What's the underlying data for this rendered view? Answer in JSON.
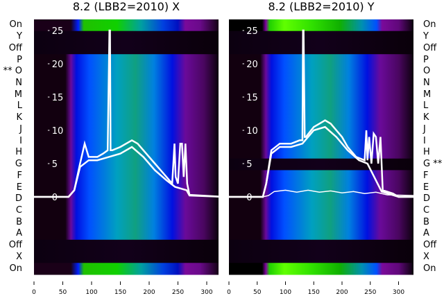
{
  "chart_data": [
    {
      "type": "heatmap",
      "title": "8.2 (LBB2=2010) X",
      "xlim": [
        0,
        320
      ],
      "ylim_overlay": [
        -1,
        27
      ],
      "x_ticks": [
        "0",
        "50",
        "100",
        "150",
        "200",
        "250",
        "300"
      ],
      "y_ticks": [
        "0",
        "5",
        "10",
        "15",
        "20",
        "25"
      ],
      "row_labels": [
        "On",
        "Y",
        "Off",
        "P",
        "** O",
        "N",
        "M",
        "L",
        "K",
        "J",
        "I",
        "H",
        "G",
        "F",
        "E",
        "D",
        "C",
        "B",
        "A",
        "Off",
        "X",
        "On"
      ],
      "row_kinds": [
        "green",
        "dark",
        "dark",
        "blue",
        "blue",
        "blue",
        "blue",
        "blue",
        "blue",
        "blue",
        "blue",
        "blue",
        "blue",
        "blue",
        "blue",
        "blue",
        "blue",
        "blue",
        "blue",
        "dark",
        "dark",
        "green"
      ],
      "lines": [
        {
          "name": "spectrum",
          "x": [
            0,
            60,
            70,
            80,
            88,
            95,
            100,
            110,
            120,
            128,
            131,
            132,
            133,
            136,
            150,
            160,
            170,
            180,
            190,
            200,
            210,
            220,
            230,
            240,
            244,
            246,
            250,
            254,
            257,
            260,
            263,
            266,
            270,
            330
          ],
          "y": [
            0,
            0,
            1,
            5,
            8,
            6,
            6,
            6,
            6.5,
            7,
            25,
            25,
            7,
            7,
            7.5,
            8,
            8.5,
            8,
            7,
            6,
            5,
            4,
            3,
            2,
            8,
            3,
            2,
            8,
            8,
            3,
            8,
            2,
            0.3,
            0
          ]
        },
        {
          "name": "spectrum-2",
          "x": [
            0,
            60,
            70,
            80,
            95,
            110,
            130,
            150,
            170,
            190,
            210,
            230,
            245,
            265,
            270,
            330
          ],
          "y": [
            0,
            0,
            1,
            4.5,
            5.5,
            5.5,
            6,
            6.5,
            7.5,
            6,
            4,
            2.5,
            1.5,
            1,
            0.2,
            0
          ]
        }
      ]
    },
    {
      "type": "heatmap",
      "title": "8.2 (LBB2=2010) Y",
      "xlim": [
        0,
        327
      ],
      "ylim_overlay": [
        -1,
        27
      ],
      "x_ticks": [
        "0",
        "50",
        "100",
        "150",
        "200",
        "250",
        "300"
      ],
      "y_ticks": [
        "0",
        "5",
        "10",
        "15",
        "20",
        "25"
      ],
      "row_labels": [
        "On",
        "Y",
        "Off",
        "P",
        "O",
        "N",
        "M",
        "L",
        "K",
        "J",
        "I",
        "H",
        "G **",
        "F",
        "E",
        "D",
        "C",
        "B",
        "A",
        "Off",
        "X",
        "On"
      ],
      "row_kinds": [
        "lime",
        "dark",
        "dark",
        "blue",
        "blue",
        "blue",
        "blue",
        "blue",
        "blue",
        "blue",
        "blue",
        "blue",
        "dark",
        "blue",
        "blue",
        "blue",
        "blue",
        "blue",
        "blue",
        "dark",
        "dark",
        "lime"
      ],
      "lines": [
        {
          "name": "spectrum",
          "x": [
            0,
            60,
            66,
            75,
            90,
            110,
            125,
            130,
            131,
            132,
            134,
            136,
            150,
            160,
            170,
            180,
            190,
            200,
            210,
            225,
            240,
            243,
            245,
            248,
            252,
            256,
            260,
            264,
            268,
            272,
            290,
            300,
            330
          ],
          "y": [
            0,
            0,
            2,
            7,
            8,
            8,
            8.5,
            8.5,
            25,
            25,
            9,
            9,
            10.5,
            11,
            11.5,
            11,
            10,
            9,
            7.5,
            6,
            5.5,
            10,
            5.5,
            9,
            5,
            9.5,
            9,
            5,
            9,
            1,
            0.5,
            0,
            0
          ]
        },
        {
          "name": "spectrum-2",
          "x": [
            0,
            60,
            66,
            75,
            90,
            110,
            130,
            150,
            170,
            190,
            210,
            230,
            245,
            270,
            300,
            330
          ],
          "y": [
            0,
            0,
            2,
            6.5,
            7.5,
            7.5,
            8,
            10,
            10.5,
            9,
            7,
            5.5,
            5,
            0.8,
            0,
            0
          ]
        },
        {
          "name": "spectrum-flat",
          "x": [
            0,
            60,
            70,
            80,
            100,
            120,
            140,
            160,
            180,
            200,
            220,
            240,
            260,
            280,
            330
          ],
          "y": [
            0,
            0,
            0.2,
            0.8,
            1,
            0.7,
            1,
            0.7,
            0.9,
            0.6,
            0.8,
            0.5,
            0.7,
            0.3,
            0.2
          ]
        }
      ]
    }
  ]
}
